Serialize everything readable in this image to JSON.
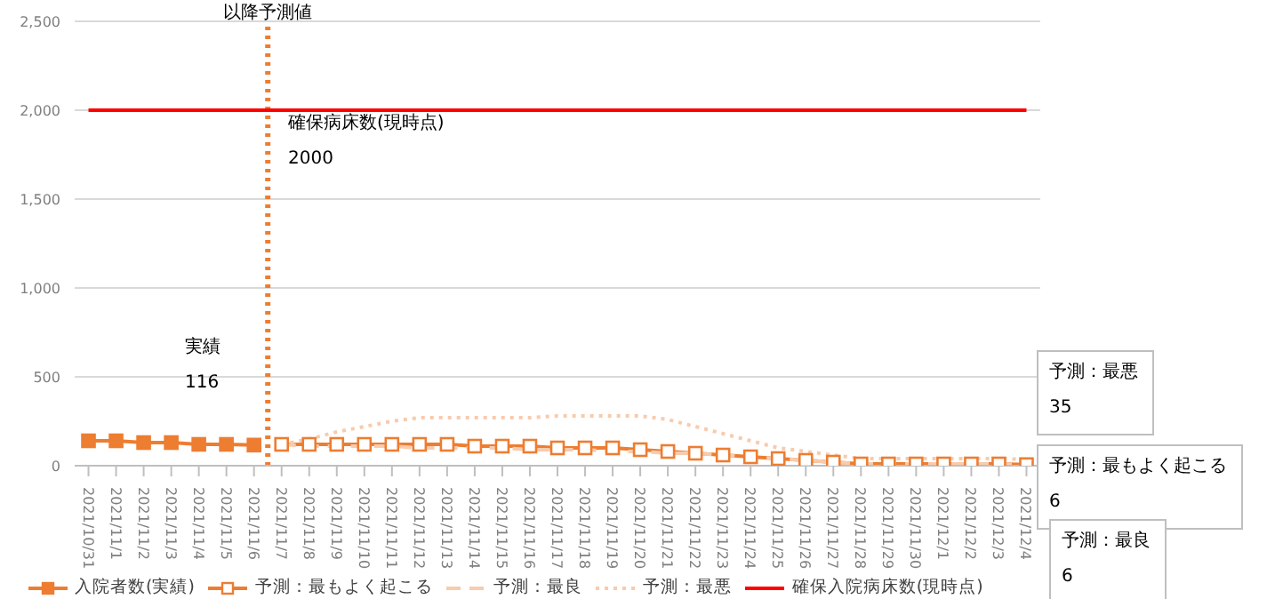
{
  "chart_data": {
    "type": "line",
    "categories": [
      "2021/10/31",
      "2021/11/1",
      "2021/11/2",
      "2021/11/3",
      "2021/11/4",
      "2021/11/5",
      "2021/11/6",
      "2021/11/7",
      "2021/11/8",
      "2021/11/9",
      "2021/11/10",
      "2021/11/11",
      "2021/11/12",
      "2021/11/13",
      "2021/11/14",
      "2021/11/15",
      "2021/11/16",
      "2021/11/17",
      "2021/11/18",
      "2021/11/19",
      "2021/11/20",
      "2021/11/21",
      "2021/11/22",
      "2021/11/23",
      "2021/11/24",
      "2021/11/25",
      "2021/11/26",
      "2021/11/27",
      "2021/11/28",
      "2021/11/29",
      "2021/11/30",
      "2021/12/1",
      "2021/12/2",
      "2021/12/3",
      "2021/12/4"
    ],
    "series": [
      {
        "name": "入院者数(実績)",
        "color": "#ed7d31",
        "marker": "square",
        "values": [
          140,
          140,
          130,
          130,
          120,
          120,
          116,
          null,
          null,
          null,
          null,
          null,
          null,
          null,
          null,
          null,
          null,
          null,
          null,
          null,
          null,
          null,
          null,
          null,
          null,
          null,
          null,
          null,
          null,
          null,
          null,
          null,
          null,
          null,
          null
        ]
      },
      {
        "name": "予測：最もよく起こる",
        "color": "#ed7d31",
        "marker": "square",
        "values": [
          null,
          null,
          null,
          null,
          null,
          null,
          null,
          120,
          120,
          120,
          120,
          120,
          120,
          120,
          110,
          110,
          110,
          100,
          100,
          100,
          90,
          80,
          70,
          60,
          50,
          40,
          30,
          20,
          10,
          10,
          10,
          10,
          10,
          10,
          6
        ]
      },
      {
        "name": "予測：最良",
        "color": "#f8cbad",
        "line_style": "dashed",
        "marker": "none",
        "values": [
          null,
          null,
          null,
          null,
          null,
          null,
          null,
          120,
          110,
          110,
          110,
          110,
          100,
          100,
          100,
          100,
          90,
          90,
          90,
          80,
          80,
          70,
          70,
          60,
          50,
          40,
          30,
          20,
          10,
          10,
          10,
          10,
          10,
          10,
          6
        ]
      },
      {
        "name": "予測：最悪",
        "color": "#f8cbad",
        "line_style": "dotted",
        "marker": "none",
        "values": [
          null,
          null,
          null,
          null,
          null,
          null,
          null,
          120,
          150,
          190,
          220,
          250,
          270,
          270,
          270,
          270,
          270,
          280,
          280,
          280,
          280,
          260,
          220,
          180,
          140,
          100,
          80,
          60,
          40,
          40,
          40,
          40,
          40,
          40,
          35
        ]
      },
      {
        "name": "確保入院病床数(現時点)",
        "color": "#ff0000",
        "marker": "none",
        "values": [
          2000,
          2000,
          2000,
          2000,
          2000,
          2000,
          2000,
          2000,
          2000,
          2000,
          2000,
          2000,
          2000,
          2000,
          2000,
          2000,
          2000,
          2000,
          2000,
          2000,
          2000,
          2000,
          2000,
          2000,
          2000,
          2000,
          2000,
          2000,
          2000,
          2000,
          2000,
          2000,
          2000,
          2000,
          2000
        ]
      }
    ],
    "ylim": [
      0,
      2500
    ],
    "yticks": [
      0,
      500,
      {
        "value": 1000,
        "label": "1,000"
      },
      {
        "value": 1500,
        "label": "1,500"
      },
      {
        "value": 2000,
        "label": "2,000"
      },
      {
        "value": 2500,
        "label": "2,500"
      }
    ],
    "grid": "y",
    "legend": "bottom",
    "ref_lines": [
      {
        "axis": "x",
        "value": "2021/11/7",
        "label": "以降予測値",
        "color": "#ed7d31",
        "line_style": "dotted"
      }
    ],
    "annotations": [
      "実績\n116",
      "確保病床数(現時点)\n2000",
      "予測：最悪\n35",
      "予測：最もよく起こる\n6",
      "予測：最良\n6"
    ]
  }
}
